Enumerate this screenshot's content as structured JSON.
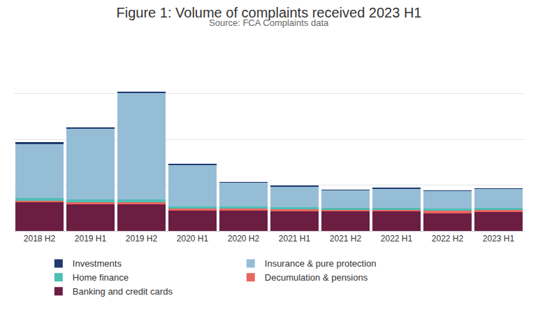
{
  "chart_data": {
    "type": "bar",
    "title": "Figure 1: Volume of complaints received 2023 H1",
    "subtitle": "Source: FCA Complaints data",
    "stacked": true,
    "grid": true,
    "tick_labels": "x",
    "legend": "bottom",
    "categories": [
      "2018 H2",
      "2019 H1",
      "2019 H2",
      "2020 H1",
      "2020 H2",
      "2021 H1",
      "2021 H2",
      "2022 H1",
      "2022 H2",
      "2023 H1"
    ],
    "ylim": [
      0,
      4000
    ],
    "yticks": [
      0,
      1000,
      2000,
      3000,
      4000
    ],
    "series": [
      {
        "name": "Investments",
        "color": "#1f3a6e",
        "values": [
          50,
          25,
          25,
          25,
          25,
          40,
          5,
          25,
          25,
          15
        ]
      },
      {
        "name": "Insurance & pure protection",
        "color": "#96bdd6",
        "values": [
          1170,
          1550,
          2330,
          895,
          510,
          435,
          380,
          410,
          380,
          410
        ]
      },
      {
        "name": "Home finance",
        "color": "#4dbfb5",
        "values": [
          65,
          65,
          65,
          50,
          50,
          50,
          50,
          50,
          40,
          40
        ]
      },
      {
        "name": "Decumulation & pensions",
        "color": "#e8665f",
        "values": [
          40,
          40,
          40,
          40,
          40,
          40,
          40,
          40,
          65,
          55
        ]
      },
      {
        "name": "Banking and credit cards",
        "color": "#6b1d42",
        "values": [
          620,
          580,
          580,
          450,
          450,
          435,
          420,
          420,
          380,
          410
        ]
      }
    ]
  }
}
